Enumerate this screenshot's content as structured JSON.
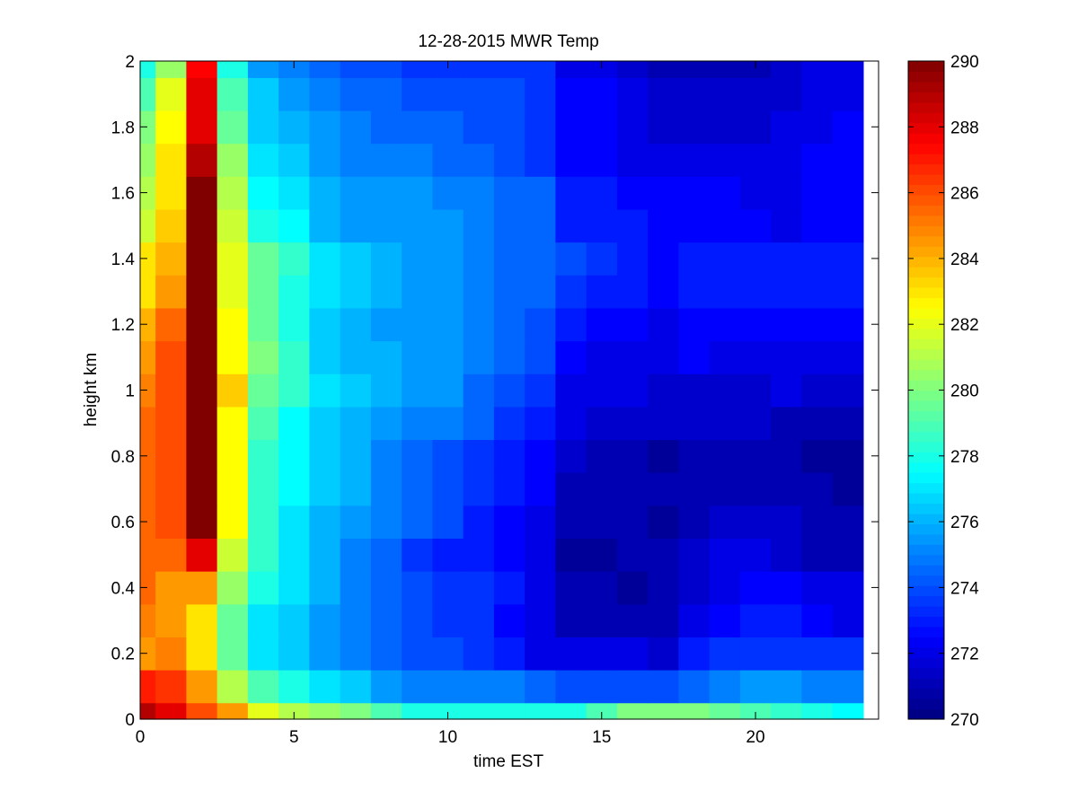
{
  "chart_data": {
    "type": "heatmap",
    "title": "12-28-2015 MWR Temp",
    "xlabel": "time EST",
    "ylabel": "height km",
    "xlim": [
      0,
      24
    ],
    "ylim": [
      0,
      2
    ],
    "x_ticks": [
      0,
      5,
      10,
      15,
      20
    ],
    "y_ticks": [
      0,
      0.2,
      0.4,
      0.6,
      0.8,
      1,
      1.2,
      1.4,
      1.6,
      1.8,
      2
    ],
    "colorbar": {
      "min": 270,
      "max": 290,
      "ticks": [
        270,
        272,
        274,
        276,
        278,
        280,
        282,
        284,
        286,
        288,
        290
      ],
      "colormap": "jet"
    },
    "x": [
      0,
      1,
      2,
      3,
      4,
      5,
      6,
      7,
      8,
      9,
      10,
      11,
      12,
      13,
      14,
      15,
      16,
      17,
      18,
      19,
      20,
      21,
      22,
      23
    ],
    "y": [
      0,
      0.1,
      0.2,
      0.3,
      0.4,
      0.5,
      0.6,
      0.7,
      0.8,
      0.9,
      1.0,
      1.1,
      1.2,
      1.3,
      1.4,
      1.5,
      1.6,
      1.7,
      1.8,
      1.9,
      2.0
    ],
    "values": [
      [
        289,
        288,
        286,
        284.5,
        282,
        281,
        280.5,
        280,
        279,
        278,
        278,
        278,
        278,
        278,
        278,
        279,
        280,
        280,
        280,
        279.5,
        279,
        278.5,
        278,
        277.5
      ],
      [
        287,
        286.5,
        284.5,
        281,
        279,
        278,
        277,
        276.5,
        275.5,
        275,
        275,
        275,
        275,
        274.5,
        274,
        274,
        274,
        274,
        274.5,
        275,
        275.5,
        275.5,
        275,
        275
      ],
      [
        284.5,
        285,
        283,
        279.5,
        277,
        276.5,
        275.5,
        275,
        274.5,
        274,
        274,
        273.5,
        273,
        272,
        272,
        272,
        272,
        271.5,
        273,
        273.5,
        273.5,
        273.5,
        273.5,
        273.5
      ],
      [
        285,
        284.5,
        283,
        279.5,
        277,
        276.5,
        275.5,
        275,
        274.5,
        274,
        273.5,
        273.5,
        272.5,
        272,
        271,
        271,
        271,
        271,
        272,
        272.5,
        273,
        273,
        272.5,
        272
      ],
      [
        285.5,
        284.5,
        284.5,
        280.5,
        278,
        277,
        276,
        275,
        274.5,
        274,
        273.5,
        273.5,
        273,
        272,
        271,
        271,
        270.5,
        271,
        271.5,
        272,
        272.5,
        272.5,
        272,
        272
      ],
      [
        285.5,
        285.5,
        288,
        281.5,
        278.5,
        277,
        276,
        275,
        274.5,
        273.5,
        273,
        273,
        272.5,
        272,
        270.5,
        270.5,
        271,
        271,
        271.5,
        272,
        272,
        271.5,
        271,
        271
      ],
      [
        285.5,
        286,
        290,
        282.5,
        278.5,
        277,
        276,
        275.5,
        275,
        274.5,
        274,
        273,
        272.5,
        272,
        271,
        271,
        271,
        270.5,
        271,
        271.5,
        271.5,
        271.5,
        271,
        271
      ],
      [
        285.5,
        286,
        290,
        282.5,
        278.5,
        277.5,
        276.5,
        276,
        275,
        274.5,
        274,
        273.5,
        273,
        272.5,
        271,
        271,
        271,
        271,
        271,
        271,
        271,
        271,
        271,
        270.5
      ],
      [
        285.5,
        286,
        290,
        282.5,
        278.5,
        277.5,
        276.5,
        276,
        275,
        274.5,
        274,
        273.5,
        273,
        272.5,
        271.5,
        271,
        271,
        270.5,
        271,
        271,
        271,
        271,
        270.5,
        270.5
      ],
      [
        285.5,
        286,
        290,
        282.5,
        279,
        277.5,
        276.5,
        276,
        275.5,
        275,
        275,
        274.5,
        273.5,
        273,
        272,
        271.5,
        271.5,
        271.5,
        271.5,
        271.5,
        271.5,
        271,
        271,
        271
      ],
      [
        285,
        286,
        290,
        283.5,
        279.5,
        278.5,
        277,
        276.5,
        276,
        275.5,
        275.5,
        274.5,
        274,
        273.5,
        272,
        272,
        272,
        271.5,
        271.5,
        271.5,
        271.5,
        272,
        271.5,
        271.5
      ],
      [
        284.5,
        286,
        290,
        282.5,
        280,
        278.5,
        276.5,
        276,
        276,
        275.5,
        275.5,
        275,
        274.5,
        274,
        272.5,
        272,
        272,
        272,
        272.5,
        272,
        272,
        272,
        272,
        272
      ],
      [
        284,
        285.5,
        290,
        282.5,
        279.5,
        278,
        276.5,
        276,
        275.5,
        275.5,
        275.5,
        275,
        274.5,
        274,
        273,
        272.5,
        272.5,
        272,
        272.5,
        272.5,
        272.5,
        272.5,
        272.5,
        272.5
      ],
      [
        283,
        284.5,
        290,
        282,
        279.5,
        278,
        277,
        276.5,
        276,
        275.5,
        275.5,
        275,
        274.5,
        274.5,
        273.5,
        273,
        273,
        272.5,
        273,
        273,
        273,
        273,
        273,
        273
      ],
      [
        283,
        284,
        290,
        282,
        279.5,
        278.5,
        277,
        276.5,
        276,
        275.5,
        275.5,
        275,
        274.5,
        274.5,
        274,
        273.5,
        273,
        272.5,
        273,
        273,
        273,
        273,
        273,
        273
      ],
      [
        281.5,
        283.5,
        290,
        281.5,
        278,
        277.5,
        276,
        275.5,
        275.5,
        275.5,
        275.5,
        275,
        274.5,
        274.5,
        273,
        273,
        273,
        272.5,
        272.5,
        272.5,
        272.5,
        272,
        272.5,
        272.5
      ],
      [
        281,
        283,
        290,
        281,
        277.5,
        277,
        276,
        275.5,
        275.5,
        275.5,
        275,
        275,
        274.5,
        274.5,
        273,
        273,
        272.5,
        272.5,
        272.5,
        272.5,
        272,
        272,
        272.5,
        272.5
      ],
      [
        280.5,
        283,
        289,
        280.5,
        277,
        276.5,
        275.5,
        275,
        275,
        275,
        274.5,
        274.5,
        274,
        273.5,
        272.5,
        272.5,
        272,
        272,
        272,
        272,
        272,
        272,
        272.5,
        272.5
      ],
      [
        280,
        282.5,
        288,
        279.5,
        276.5,
        276,
        275.5,
        275,
        274.5,
        274.5,
        274.5,
        274,
        274,
        273.5,
        272.5,
        272.5,
        272,
        271.5,
        271.5,
        271.5,
        271.5,
        272,
        272,
        272.5
      ],
      [
        279,
        282,
        288,
        279,
        276.5,
        275.5,
        275,
        274.5,
        274.5,
        274,
        274,
        274,
        274,
        273.5,
        272.5,
        272.5,
        272,
        271.5,
        271.5,
        271.5,
        271.5,
        271.5,
        272,
        272
      ],
      [
        278,
        280.5,
        287.5,
        278,
        275.5,
        275,
        274.5,
        274,
        274,
        273.5,
        273.5,
        273.5,
        273.5,
        273.5,
        272,
        272,
        271.5,
        271,
        271,
        271,
        271,
        271.5,
        272,
        272
      ]
    ]
  }
}
